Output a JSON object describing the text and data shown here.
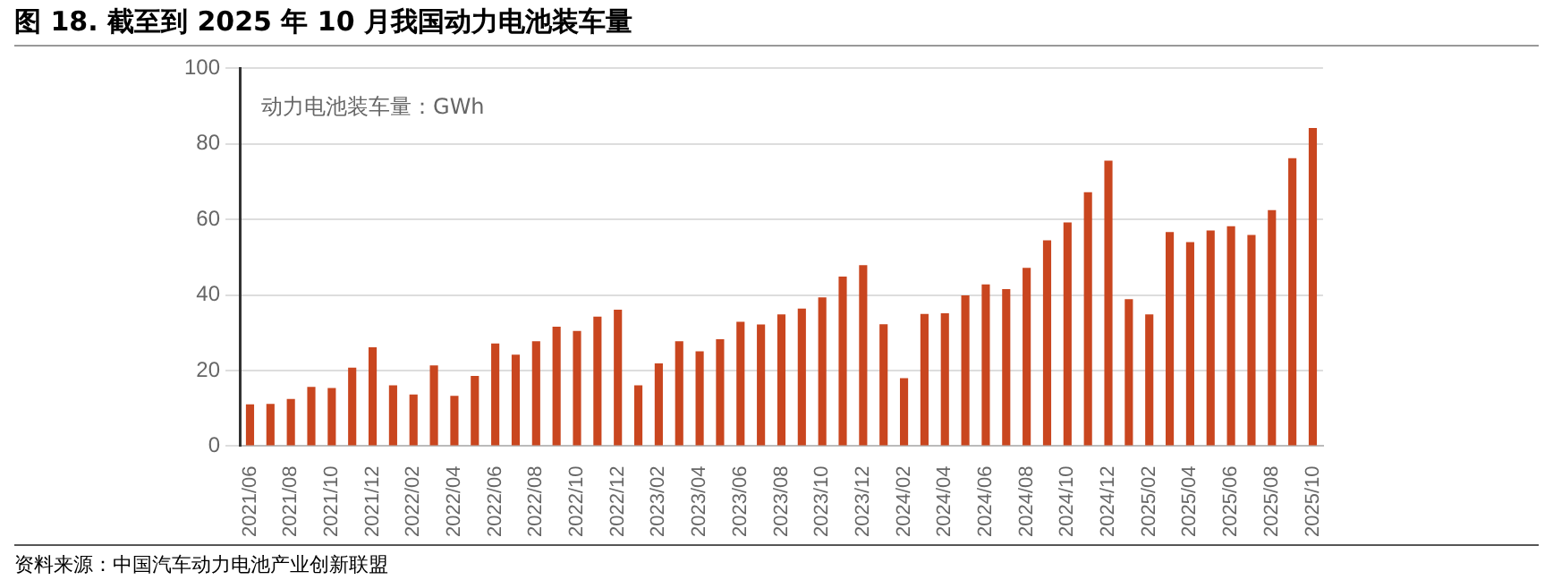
{
  "chart_data": {
    "type": "bar",
    "title": "图 18. 截至到 2025 年 10 月我国动力电池装车量",
    "categories": [
      "2021/06",
      null,
      "2021/08",
      null,
      "2021/10",
      null,
      "2021/12",
      null,
      "2022/02",
      null,
      "2022/04",
      null,
      "2022/06",
      null,
      "2022/08",
      null,
      "2022/10",
      null,
      "2022/12",
      null,
      "2023/02",
      null,
      "2023/04",
      null,
      "2023/06",
      null,
      "2023/08",
      null,
      "2023/10",
      null,
      "2023/12",
      null,
      "2024/02",
      null,
      "2024/04",
      null,
      "2024/06",
      null,
      "2024/08",
      null,
      "2024/10",
      null,
      "2024/12",
      null,
      "2025/02",
      null,
      "2025/04",
      null,
      "2025/06",
      null,
      "2025/08",
      null,
      "2025/10"
    ],
    "values": [
      11.1,
      11.2,
      12.5,
      15.7,
      15.4,
      20.8,
      26.2,
      16.1,
      13.7,
      21.4,
      13.3,
      18.6,
      27.2,
      24.2,
      27.8,
      31.6,
      30.5,
      34.3,
      36.1,
      16.1,
      21.9,
      27.8,
      25.1,
      28.3,
      32.9,
      32.2,
      34.9,
      36.4,
      39.4,
      44.9,
      47.9,
      32.3,
      18.0,
      35.0,
      35.2,
      39.9,
      42.8,
      41.6,
      47.2,
      54.5,
      59.2,
      67.2,
      75.6,
      38.9,
      34.9,
      56.7,
      54.0,
      57.1,
      58.2,
      55.9,
      62.5,
      76.2,
      84.2
    ],
    "color": "#c9461f",
    "ylim": [
      0,
      100
    ],
    "yticks": [
      0,
      20,
      40,
      60,
      80,
      100
    ],
    "grid": "y",
    "annotations": [
      "动力电池装车量：GWh",
      "资料来源：中国汽车动力电池产业创新联盟"
    ]
  }
}
